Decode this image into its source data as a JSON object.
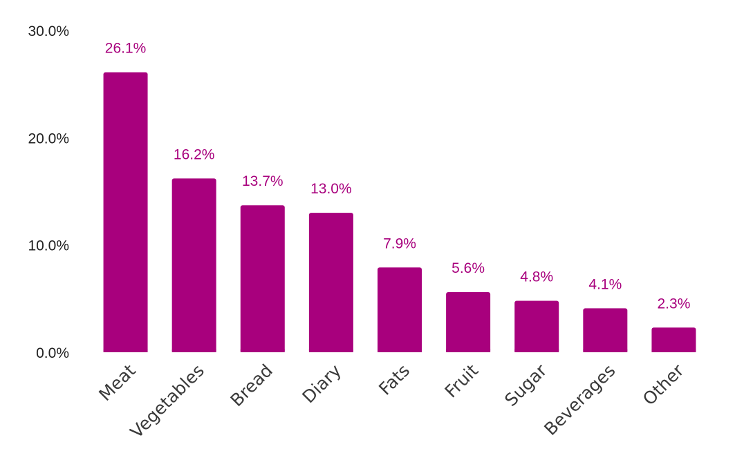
{
  "chart_data": {
    "type": "bar",
    "categories": [
      "Meat",
      "Vegetables",
      "Bread",
      "Diary",
      "Fats",
      "Fruit",
      "Sugar",
      "Beverages",
      "Other"
    ],
    "values": [
      26.1,
      16.2,
      13.7,
      13.0,
      7.9,
      5.6,
      4.8,
      4.1,
      2.3
    ],
    "data_labels": [
      "26.1%",
      "16.2%",
      "13.7%",
      "13.0%",
      "7.9%",
      "5.6%",
      "4.8%",
      "4.1%",
      "2.3%"
    ],
    "y_ticks": [
      0,
      10,
      20,
      30
    ],
    "y_tick_labels": [
      "0.0%",
      "10.0%",
      "20.0%",
      "30.0%"
    ],
    "ylim": [
      0,
      30
    ],
    "grid": false,
    "legend": "none",
    "bar_color": "#a8007d",
    "label_color": "#a8007d"
  }
}
